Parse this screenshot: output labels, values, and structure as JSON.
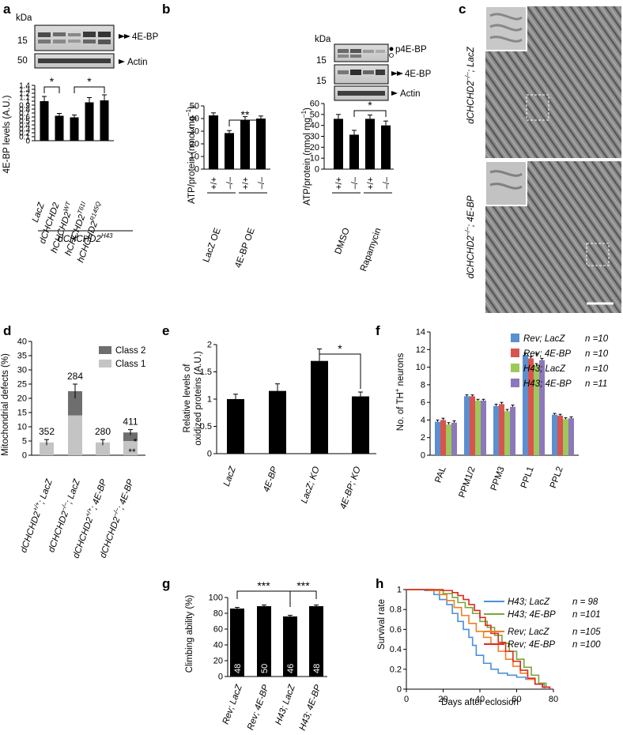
{
  "panel_letters": [
    "a",
    "b",
    "c",
    "d",
    "e",
    "f",
    "g",
    "h"
  ],
  "common": {
    "kda": "kDa",
    "sig_1": "*",
    "sig_2": "**",
    "sig_3": "***"
  },
  "panel_a": {
    "blot": {
      "marker_15": "15",
      "marker_50": "50",
      "band_4ebp": "4E-BP",
      "band_actin": "Actin"
    },
    "genotype_group": "dCHCHD2",
    "genotype_group_sup": "H43",
    "chart_data": {
      "type": "bar",
      "ylabel": "4E-BP levels (A.U.)",
      "ylim": [
        0,
        1.4
      ],
      "yticks": [
        "0",
        "0.1",
        "0.2",
        "0.3",
        "0.4",
        "0.5",
        "0.6",
        "0.7",
        "0.8",
        "0.9",
        "1",
        "1.1",
        "1.2",
        "1.3",
        "1.4"
      ],
      "categories": [
        {
          "base": "LacZ",
          "sup": ""
        },
        {
          "base": "dCHCHD2",
          "sup": ""
        },
        {
          "base": "hCHCHD2",
          "sup": "WT"
        },
        {
          "base": "hCHCHD2",
          "sup": "T61I"
        },
        {
          "base": "hCHCHD2",
          "sup": "R145Q"
        }
      ],
      "values": [
        1.0,
        0.63,
        0.59,
        0.97,
        1.02
      ],
      "errors": [
        0.12,
        0.06,
        0.06,
        0.12,
        0.14
      ]
    }
  },
  "panel_b": {
    "blot": {
      "band_p4ebp": "p4E-BP",
      "band_4ebp": "4E-BP",
      "band_actin": "Actin",
      "marker_15": "15"
    },
    "chart_left": {
      "type": "bar",
      "ylabel_line1": "ATP/protein (nmol mg",
      "ylabel_sup": "–1",
      "ylabel_line2": ")",
      "ylim": [
        0,
        50
      ],
      "yticks": [
        "0",
        "10",
        "20",
        "30",
        "40",
        "50"
      ],
      "categories": [
        "+/+",
        "–/–",
        "+/+",
        "–/–"
      ],
      "groups": [
        "LacZ OE",
        "4E-BP OE"
      ],
      "values": [
        42.5,
        28.5,
        38.5,
        40.0
      ],
      "errors": [
        2.0,
        2.0,
        3.0,
        2.0
      ]
    },
    "chart_right": {
      "type": "bar",
      "ylim": [
        0,
        60
      ],
      "yticks": [
        "0",
        "10",
        "20",
        "30",
        "40",
        "50",
        "60"
      ],
      "categories": [
        "+/+",
        "–/–",
        "+/+",
        "–/–"
      ],
      "groups": [
        "DMSO",
        "Rapamycin"
      ],
      "values": [
        46.0,
        31.5,
        46.0,
        40.0
      ],
      "errors": [
        4.0,
        4.0,
        3.5,
        4.0
      ]
    }
  },
  "panel_c": {
    "label_top_base": "dCHCHD2",
    "label_top_sup": "–/–",
    "label_top_suffix": "; LacZ",
    "label_bottom_base": "dCHCHD2",
    "label_bottom_sup": "–/–",
    "label_bottom_suffix": "; 4E-BP"
  },
  "panel_d": {
    "chart_data": {
      "type": "bar",
      "ylabel": "Mitochondrial defects (%)",
      "ylim": [
        0,
        40
      ],
      "yticks": [
        "0",
        "5",
        "10",
        "15",
        "20",
        "25",
        "30",
        "35",
        "40"
      ],
      "legend": [
        "Class 2",
        "Class 1"
      ],
      "categories": [
        {
          "base": "dCHCHD2",
          "sup": "+/+",
          "suffix": "; LacZ"
        },
        {
          "base": "dCHCHD2",
          "sup": "–/–",
          "suffix": "; LacZ"
        },
        {
          "base": "dCHCHD2",
          "sup": "+/+",
          "suffix": "; 4E-BP"
        },
        {
          "base": "dCHCHD2",
          "sup": "–/–",
          "suffix": "; 4E-BP"
        }
      ],
      "n_labels": [
        "352",
        "284",
        "280",
        "411"
      ],
      "class1": [
        4.5,
        14.0,
        4.5,
        5.0
      ],
      "class2": [
        0.0,
        8.5,
        0.0,
        3.0
      ],
      "errors": [
        1.0,
        2.5,
        1.0,
        1.0
      ]
    }
  },
  "panel_e": {
    "chart_data": {
      "type": "bar",
      "ylabel_line1": "Relative levels of",
      "ylabel_line2": "oxidized proteins (A.U.)",
      "ylim": [
        0,
        2
      ],
      "yticks": [
        "0",
        "0.5",
        "1",
        "1.5",
        "2"
      ],
      "categories": [
        "LacZ",
        "4E-BP",
        "LacZ; KO",
        "4E-BP; KO"
      ],
      "values": [
        1.0,
        1.15,
        1.7,
        1.05
      ],
      "errors": [
        0.09,
        0.13,
        0.22,
        0.08
      ]
    }
  },
  "panel_f": {
    "chart_data": {
      "type": "bar",
      "ylabel": "No. of TH",
      "ylabel_sup": "+",
      "ylabel_suffix": " neurons",
      "ylim": [
        0,
        14
      ],
      "yticks": [
        "0",
        "2",
        "4",
        "6",
        "8",
        "10",
        "12",
        "14"
      ],
      "categories": [
        "PAL",
        "PPM1/2",
        "PPM3",
        "PPL1",
        "PPL2"
      ],
      "series": [
        {
          "name": "Rev; LacZ",
          "n": "n =10",
          "color": "#5b8fd0",
          "values": [
            3.8,
            6.7,
            5.6,
            11.4,
            4.6
          ],
          "errors": [
            0.2,
            0.15,
            0.2,
            0.2,
            0.15
          ]
        },
        {
          "name": "Rev; 4E-BP",
          "n": "n =10",
          "color": "#d9534f",
          "values": [
            4.0,
            6.7,
            5.8,
            11.0,
            4.5
          ],
          "errors": [
            0.2,
            0.15,
            0.2,
            0.2,
            0.15
          ]
        },
        {
          "name": "H43; LacZ",
          "n": "n =10",
          "color": "#9ec85a",
          "values": [
            3.5,
            6.2,
            5.0,
            10.2,
            4.1
          ],
          "errors": [
            0.2,
            0.15,
            0.2,
            0.2,
            0.15
          ]
        },
        {
          "name": "H43; 4E-BP",
          "n": "n =11",
          "color": "#8c78bb",
          "values": [
            3.7,
            6.2,
            5.5,
            10.8,
            4.2
          ],
          "errors": [
            0.2,
            0.15,
            0.2,
            0.2,
            0.15
          ]
        }
      ]
    }
  },
  "panel_g": {
    "chart_data": {
      "type": "bar",
      "ylabel": "Climbing ability (%)",
      "ylim": [
        0,
        100
      ],
      "yticks": [
        "0",
        "20",
        "40",
        "60",
        "80",
        "100"
      ],
      "categories": [
        "Rev; LacZ",
        "Rev; 4E-BP",
        "H43; LacZ",
        "H43; 4E-BP"
      ],
      "n_labels": [
        "48",
        "50",
        "46",
        "48"
      ],
      "values": [
        86,
        89,
        76,
        89
      ],
      "errors": [
        1.5,
        1.5,
        1.5,
        1.5
      ]
    }
  },
  "panel_h": {
    "chart_data": {
      "type": "line",
      "xlabel": "Days after eclosion",
      "ylabel": "Survival rate",
      "xlim": [
        0,
        80
      ],
      "ylim": [
        0,
        1
      ],
      "xticks": [
        "0",
        "20",
        "40",
        "60",
        "80"
      ],
      "yticks": [
        "0",
        "0.2",
        "0.4",
        "0.6",
        "0.8",
        "1"
      ],
      "series": [
        {
          "name": "H43; LacZ",
          "n": "n = 98",
          "color": "#4a90d9",
          "x": [
            0,
            10,
            15,
            18,
            22,
            25,
            28,
            31,
            34,
            36,
            38,
            42,
            46,
            50,
            55,
            60,
            65,
            70,
            75
          ],
          "y": [
            1,
            0.99,
            0.95,
            0.9,
            0.85,
            0.76,
            0.68,
            0.6,
            0.52,
            0.44,
            0.34,
            0.26,
            0.2,
            0.16,
            0.14,
            0.12,
            0.1,
            0.05,
            0.0
          ]
        },
        {
          "name": "H43; 4E-BP",
          "n": "n =101",
          "color": "#76a83a",
          "x": [
            0,
            15,
            20,
            25,
            28,
            32,
            36,
            40,
            44,
            48,
            52,
            56,
            60,
            64,
            68,
            72,
            76,
            78
          ],
          "y": [
            1,
            0.99,
            0.96,
            0.92,
            0.87,
            0.82,
            0.76,
            0.68,
            0.62,
            0.54,
            0.46,
            0.38,
            0.3,
            0.22,
            0.14,
            0.06,
            0.02,
            0.0
          ]
        },
        {
          "name": "Rev; LacZ",
          "n": "n =105",
          "color": "#f07f22",
          "x": [
            0,
            12,
            18,
            22,
            26,
            30,
            34,
            38,
            42,
            46,
            50,
            54,
            58,
            62,
            66,
            70,
            74,
            78
          ],
          "y": [
            1,
            0.99,
            0.95,
            0.89,
            0.82,
            0.74,
            0.66,
            0.58,
            0.52,
            0.45,
            0.38,
            0.3,
            0.23,
            0.16,
            0.1,
            0.05,
            0.02,
            0.0
          ]
        },
        {
          "name": "Rev; 4E-BP",
          "n": "n =100",
          "color": "#e0281e",
          "x": [
            0,
            20,
            25,
            28,
            31,
            34,
            37,
            40,
            43,
            46,
            50,
            54,
            58,
            62,
            66,
            70,
            74,
            78
          ],
          "y": [
            1,
            0.99,
            0.97,
            0.94,
            0.9,
            0.85,
            0.79,
            0.72,
            0.64,
            0.56,
            0.47,
            0.38,
            0.28,
            0.19,
            0.11,
            0.05,
            0.02,
            0.0
          ]
        }
      ]
    }
  }
}
